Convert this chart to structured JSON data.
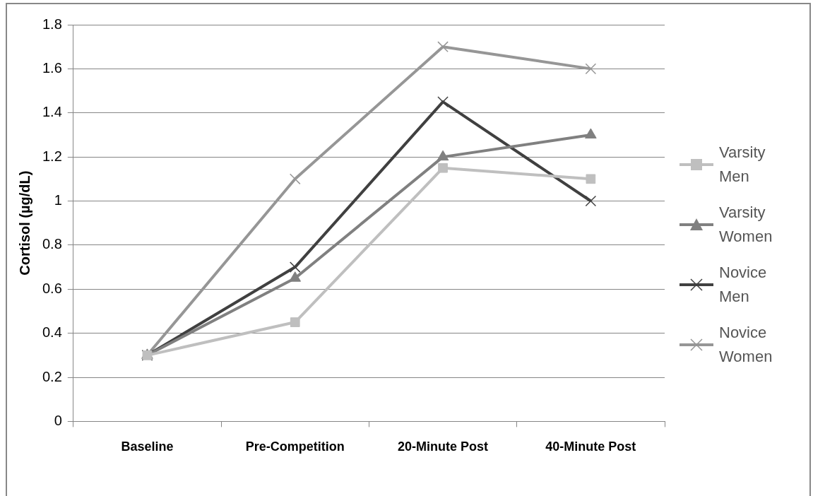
{
  "chart_data": {
    "type": "line",
    "ylabel": "Cortisol (µg/dL)",
    "categories": [
      "Baseline",
      "Pre-Competition",
      "20-Minute Post",
      "40-Minute Post"
    ],
    "series": [
      {
        "name": "Varsity Men",
        "color": "#bfbfbf",
        "marker": "square",
        "values": [
          0.3,
          0.45,
          1.15,
          1.1
        ]
      },
      {
        "name": "Varsity Women",
        "color": "#808080",
        "marker": "triangle",
        "values": [
          0.3,
          0.65,
          1.2,
          1.3
        ]
      },
      {
        "name": "Novice Men",
        "color": "#404040",
        "marker": "cross",
        "values": [
          0.3,
          0.7,
          1.45,
          1.0
        ]
      },
      {
        "name": "Novice Women",
        "color": "#969696",
        "marker": "cross",
        "values": [
          0.3,
          1.1,
          1.7,
          1.6
        ]
      }
    ],
    "ylim": [
      0,
      1.8
    ],
    "yticks": [
      0,
      0.2,
      0.4,
      0.6,
      0.8,
      1,
      1.2,
      1.4,
      1.6,
      1.8
    ],
    "grid": "y",
    "legend": "right",
    "line_style": "solid"
  }
}
